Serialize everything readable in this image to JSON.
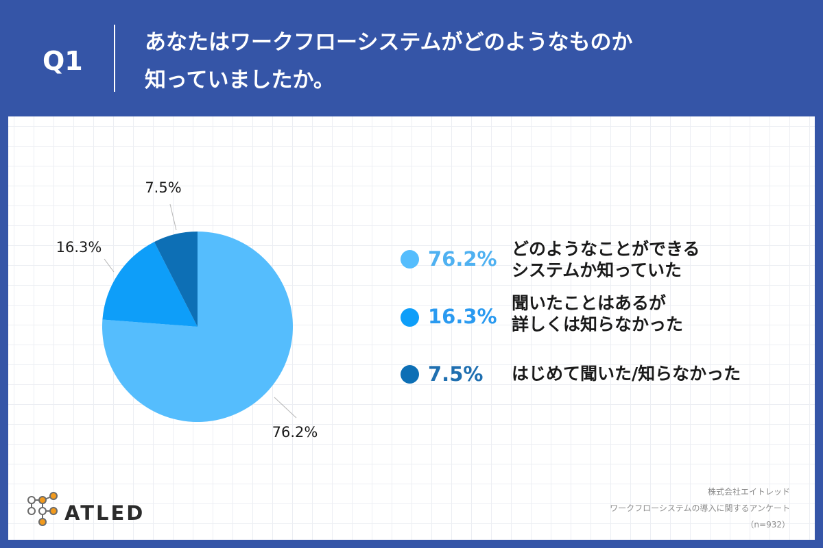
{
  "question": {
    "label": "Q1",
    "line1": "あなたはワークフローシステムがどのようなものか",
    "line2": "知っていましたか。"
  },
  "colors": {
    "header_bg": "#3555a7",
    "slice1": "#55bdfd",
    "slice2": "#0e9ef9",
    "slice3": "#0d6fb5",
    "legend_pct1": "#4fb1f1",
    "legend_pct2": "#2a9af0",
    "legend_pct3": "#1f6fb0"
  },
  "chart_data": {
    "type": "pie",
    "slices": [
      {
        "value": 76.2,
        "label": "76.2%",
        "legend_line1": "どのようなことができる",
        "legend_line2": "システムか知っていた"
      },
      {
        "value": 16.3,
        "label": "16.3%",
        "legend_line1": "聞いたことはあるが",
        "legend_line2": "詳しくは知らなかった"
      },
      {
        "value": 7.5,
        "label": "7.5%",
        "legend_line1": "はじめて聞いた/知らなかった",
        "legend_line2": ""
      }
    ]
  },
  "legend": [
    {
      "pct": "76.2%",
      "line1": "どのようなことができる",
      "line2": "システムか知っていた"
    },
    {
      "pct": "16.3%",
      "line1": "聞いたことはあるが",
      "line2": "詳しくは知らなかった"
    },
    {
      "pct": "7.5%",
      "line1": "はじめて聞いた/知らなかった"
    }
  ],
  "logo": {
    "text": "ATLED"
  },
  "source": {
    "line1": "株式会社エイトレッド",
    "line2": "ワークフローシステムの導入に関するアンケート",
    "line3": "（n=932）"
  }
}
